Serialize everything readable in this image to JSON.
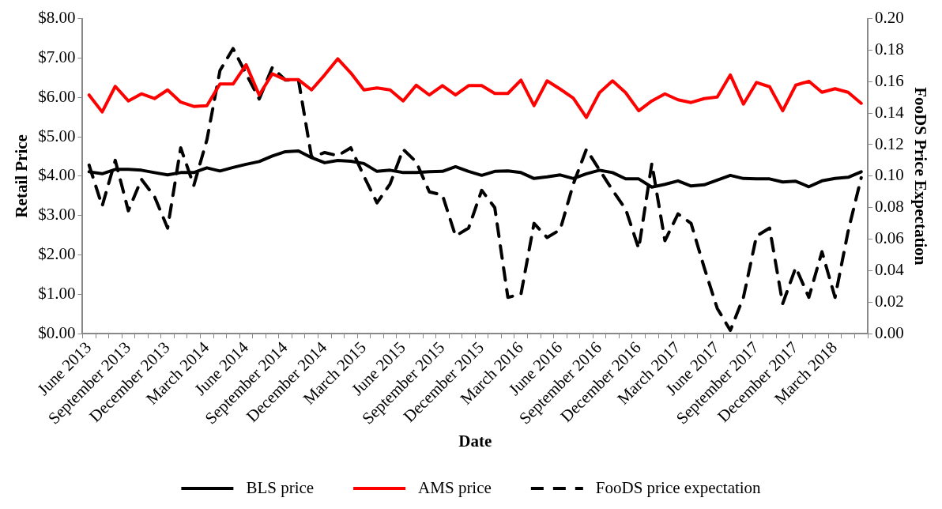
{
  "chart_data": {
    "type": "line",
    "xlabel": "Date",
    "ylabel": "Retail Price",
    "y2label": "FooDS Price Expectation",
    "categories": [
      "June 2013",
      null,
      null,
      "September 2013",
      null,
      null,
      "December 2013",
      null,
      null,
      "March 2014",
      null,
      null,
      "June 2014",
      null,
      null,
      "September 2014",
      null,
      null,
      "December 2014",
      null,
      null,
      "March 2015",
      null,
      null,
      "June 2015",
      null,
      null,
      "September 2015",
      null,
      null,
      "December 2015",
      null,
      null,
      "March 2016",
      null,
      null,
      "June 2016",
      null,
      null,
      "September 2016",
      null,
      null,
      "December 2016",
      null,
      null,
      "March 2017",
      null,
      null,
      "June 2017",
      null,
      null,
      "September 2017",
      null,
      null,
      "December 2017",
      null,
      null,
      "March 2018",
      null,
      null
    ],
    "series": [
      {
        "name": "BLS price",
        "color": "#000000",
        "line_style": "solid",
        "values": [
          4.11,
          4.06,
          4.17,
          4.17,
          4.15,
          4.09,
          4.03,
          4.09,
          4.09,
          4.21,
          4.13,
          4.22,
          4.3,
          4.37,
          4.51,
          4.62,
          4.64,
          4.47,
          4.34,
          4.4,
          4.38,
          4.32,
          4.12,
          4.15,
          4.09,
          4.09,
          4.11,
          4.12,
          4.24,
          4.12,
          4.02,
          4.12,
          4.13,
          4.09,
          3.94,
          3.98,
          4.03,
          3.94,
          4.06,
          4.15,
          4.09,
          3.93,
          3.93,
          3.72,
          3.79,
          3.88,
          3.75,
          3.78,
          3.9,
          4.02,
          3.94,
          3.93,
          3.93,
          3.85,
          3.87,
          3.73,
          3.88,
          3.94,
          3.97,
          4.11
        ]
      },
      {
        "name": "AMS price",
        "color": "#ff0000",
        "line_style": "solid",
        "values": [
          6.06,
          5.63,
          6.28,
          5.91,
          6.09,
          5.97,
          6.19,
          5.88,
          5.77,
          5.79,
          6.34,
          6.34,
          6.83,
          6.06,
          6.6,
          6.45,
          6.45,
          6.19,
          6.57,
          6.98,
          6.62,
          6.19,
          6.24,
          6.19,
          5.91,
          6.31,
          6.06,
          6.3,
          6.06,
          6.3,
          6.3,
          6.1,
          6.1,
          6.44,
          5.79,
          6.42,
          6.21,
          5.98,
          5.49,
          6.12,
          6.42,
          6.12,
          5.66,
          5.91,
          6.09,
          5.94,
          5.87,
          5.97,
          6.01,
          6.57,
          5.83,
          6.38,
          6.27,
          5.66,
          6.31,
          6.41,
          6.13,
          6.22,
          6.13,
          5.85
        ]
      },
      {
        "name": "FooDS price expectation",
        "color": "#000000",
        "line_style": "dashed",
        "axis": "y2",
        "values": [
          0.107,
          0.081,
          0.11,
          0.078,
          0.098,
          0.087,
          0.067,
          0.118,
          0.094,
          0.123,
          0.167,
          0.181,
          0.165,
          0.149,
          0.169,
          0.161,
          0.161,
          0.112,
          0.115,
          0.113,
          0.118,
          0.1,
          0.083,
          0.095,
          0.117,
          0.109,
          0.09,
          0.088,
          0.062,
          0.067,
          0.091,
          0.08,
          0.023,
          0.025,
          0.07,
          0.061,
          0.066,
          0.095,
          0.117,
          0.104,
          0.091,
          0.079,
          0.054,
          0.108,
          0.059,
          0.076,
          0.07,
          0.042,
          0.016,
          0.002,
          0.023,
          0.062,
          0.067,
          0.019,
          0.042,
          0.023,
          0.052,
          0.023,
          0.065,
          0.099
        ]
      }
    ],
    "ylim": [
      0,
      8
    ],
    "yticks": [
      {
        "value": 0,
        "label": "$0.00"
      },
      {
        "value": 1,
        "label": "$1.00"
      },
      {
        "value": 2,
        "label": "$2.00"
      },
      {
        "value": 3,
        "label": "$3.00"
      },
      {
        "value": 4,
        "label": "$4.00"
      },
      {
        "value": 5,
        "label": "$5.00"
      },
      {
        "value": 6,
        "label": "$6.00"
      },
      {
        "value": 7,
        "label": "$7.00"
      },
      {
        "value": 8,
        "label": "$8.00"
      }
    ],
    "y2lim": [
      0,
      0.2
    ],
    "y2ticks": [
      {
        "value": 0,
        "label": "0.00"
      },
      {
        "value": 0.02,
        "label": "0.02"
      },
      {
        "value": 0.04,
        "label": "0.04"
      },
      {
        "value": 0.06,
        "label": "0.06"
      },
      {
        "value": 0.08,
        "label": "0.08"
      },
      {
        "value": 0.1,
        "label": "0.10"
      },
      {
        "value": 0.12,
        "label": "0.12"
      },
      {
        "value": 0.14,
        "label": "0.14"
      },
      {
        "value": 0.16,
        "label": "0.16"
      },
      {
        "value": 0.18,
        "label": "0.18"
      },
      {
        "value": 0.2,
        "label": "0.20"
      }
    ],
    "grid": false,
    "legend": "bottom",
    "marker": "none"
  }
}
